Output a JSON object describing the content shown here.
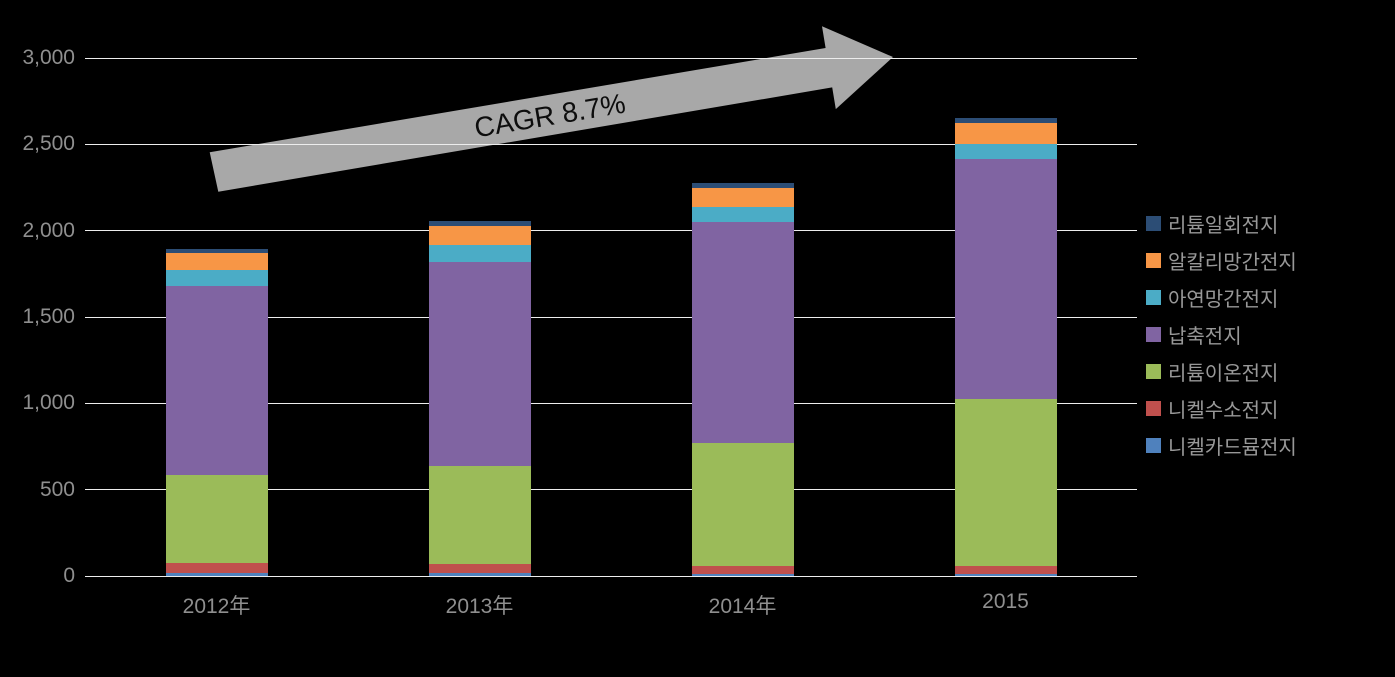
{
  "chart_data": {
    "type": "bar",
    "subtype": "stacked-column",
    "title": "",
    "categories": [
      "2012年",
      "2013年",
      "2014年",
      "2015"
    ],
    "series": [
      {
        "name": "니켈카드뮴전지",
        "color": "#4F81BD",
        "values": [
          15,
          15,
          12,
          12
        ]
      },
      {
        "name": "니켈수소전지",
        "color": "#C0504D",
        "values": [
          60,
          55,
          45,
          45
        ]
      },
      {
        "name": "리튬이온전지",
        "color": "#9BBB59",
        "values": [
          510,
          570,
          715,
          970
        ]
      },
      {
        "name": "납축전지",
        "color": "#8064A2",
        "values": [
          1095,
          1180,
          1280,
          1390
        ]
      },
      {
        "name": "아연망간전지",
        "color": "#4BACC6",
        "values": [
          90,
          95,
          85,
          85
        ]
      },
      {
        "name": "알칼리망간전지",
        "color": "#F79646",
        "values": [
          100,
          110,
          110,
          120
        ]
      },
      {
        "name": "리튬일회전지",
        "color": "#2C4D75",
        "values": [
          25,
          30,
          30,
          30
        ]
      }
    ],
    "totals": [
      1895,
      2055,
      2277,
      2652
    ],
    "stack_order_bottom_to_top": [
      "니켈카드뮴전지",
      "니켈수소전지",
      "리튬이온전지",
      "납축전지",
      "아연망간전지",
      "알칼리망간전지",
      "리튬일회전지"
    ],
    "legend_order_top_to_bottom": [
      "리튬일회전지",
      "알칼리망간전지",
      "아연망간전지",
      "납축전지",
      "리튬이온전지",
      "니켈수소전지",
      "니켈카드뮴전지"
    ],
    "y_axis": {
      "min": 0,
      "max": 3000,
      "step": 500,
      "tick_labels": [
        "0",
        "500",
        "1,000",
        "1,500",
        "2,000",
        "2,500",
        "3,000"
      ]
    },
    "annotation": {
      "text": "CAGR 8.7%"
    },
    "grid": true,
    "legend_position": "right",
    "colors": {
      "background": "#000000",
      "gridline": "#EDEDED",
      "arrow": "#A8A8A8",
      "axis_text": "#8F8F8F",
      "legend_text": "#989898",
      "annotation_text": "#0D0D0D"
    }
  }
}
